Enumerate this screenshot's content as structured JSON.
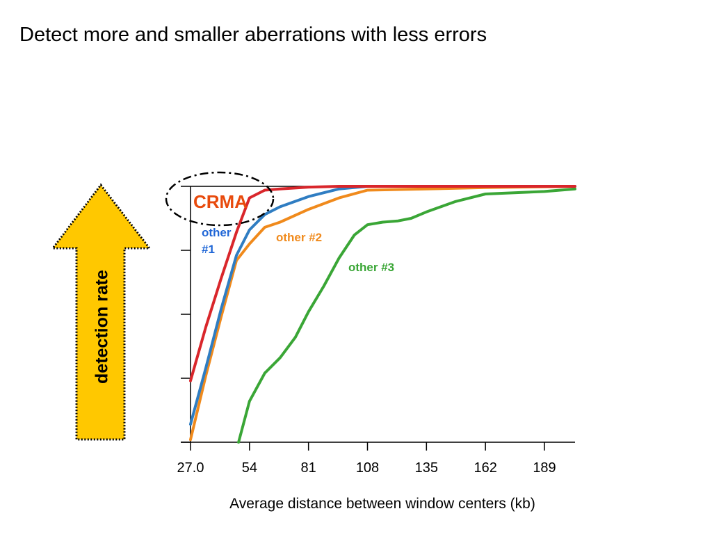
{
  "slide": {
    "title": "Detect more and smaller aberrations with less errors",
    "arrow_label": "detection rate"
  },
  "chart_data": {
    "type": "line",
    "title": "",
    "xlabel": "Average distance between window centers (kb)",
    "ylabel": "",
    "xlim": [
      27.0,
      203
    ],
    "ylim": [
      0,
      1
    ],
    "x_ticks": [
      27.0,
      54,
      81,
      108,
      135,
      162,
      189
    ],
    "x_tick_labels": [
      "27.0",
      "54",
      "81",
      "108",
      "135",
      "162",
      "189"
    ],
    "y_ticks": [
      0,
      0.25,
      0.5,
      0.75,
      1.0
    ],
    "grid": false,
    "legend": "inline labels",
    "series": [
      {
        "name": "CRMA",
        "color": "#d9262b",
        "label_color": "#e84a0c",
        "points": [
          [
            27,
            0.24
          ],
          [
            34,
            0.45
          ],
          [
            41,
            0.64
          ],
          [
            48,
            0.82
          ],
          [
            54,
            0.955
          ],
          [
            61,
            0.985
          ],
          [
            68,
            0.99
          ],
          [
            81,
            0.997
          ],
          [
            95,
            1.0
          ],
          [
            108,
            1.0
          ],
          [
            135,
            1.0
          ],
          [
            162,
            1.0
          ],
          [
            203,
            1.0
          ]
        ]
      },
      {
        "name": "other #1",
        "color": "#2f7dc2",
        "label_color": "#1f66d6",
        "points": [
          [
            27,
            0.07
          ],
          [
            34,
            0.29
          ],
          [
            41,
            0.52
          ],
          [
            48,
            0.73
          ],
          [
            54,
            0.83
          ],
          [
            61,
            0.89
          ],
          [
            68,
            0.92
          ],
          [
            81,
            0.96
          ],
          [
            95,
            0.99
          ],
          [
            108,
            1.0
          ],
          [
            135,
            1.0
          ],
          [
            162,
            1.0
          ],
          [
            203,
            1.0
          ]
        ]
      },
      {
        "name": "other #2",
        "color": "#f08a1c",
        "label_color": "#f08a1c",
        "points": [
          [
            27,
            0.01
          ],
          [
            34,
            0.26
          ],
          [
            41,
            0.49
          ],
          [
            48,
            0.71
          ],
          [
            54,
            0.775
          ],
          [
            61,
            0.84
          ],
          [
            68,
            0.86
          ],
          [
            81,
            0.91
          ],
          [
            95,
            0.955
          ],
          [
            108,
            0.985
          ],
          [
            135,
            0.99
          ],
          [
            162,
            0.995
          ],
          [
            203,
            1.0
          ]
        ]
      },
      {
        "name": "other #3",
        "color": "#3aa636",
        "label_color": "#3aa636",
        "points": [
          [
            49,
            0.0
          ],
          [
            54,
            0.16
          ],
          [
            61,
            0.27
          ],
          [
            68,
            0.33
          ],
          [
            75,
            0.41
          ],
          [
            81,
            0.51
          ],
          [
            88,
            0.61
          ],
          [
            95,
            0.72
          ],
          [
            102,
            0.81
          ],
          [
            108,
            0.85
          ],
          [
            115,
            0.86
          ],
          [
            122,
            0.865
          ],
          [
            128,
            0.875
          ],
          [
            135,
            0.9
          ],
          [
            148,
            0.94
          ],
          [
            162,
            0.97
          ],
          [
            189,
            0.98
          ],
          [
            203,
            0.99
          ]
        ]
      }
    ]
  }
}
